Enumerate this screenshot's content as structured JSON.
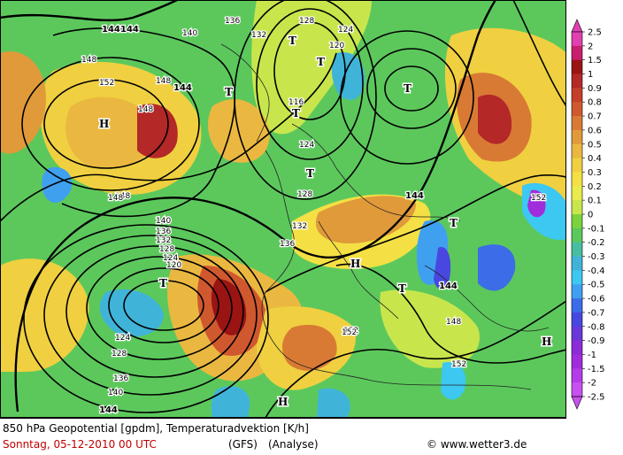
{
  "footer": {
    "line1": "850 hPa Geopotential [gpdm], Temperaturadvektion [K/h]",
    "line2": "Sonntag, 05-12-2010  00 UTC",
    "model": "(GFS)",
    "analysis": "(Analyse)",
    "credit": "www.wetter3.de"
  },
  "colorbar": {
    "ticks": [
      "2.5",
      "2",
      "1.5",
      "1",
      "0.9",
      "0.8",
      "0.7",
      "0.6",
      "0.5",
      "0.4",
      "0.3",
      "0.2",
      "0.1",
      "0",
      "-0.1",
      "-0.2",
      "-0.3",
      "-0.4",
      "-0.5",
      "-0.6",
      "-0.7",
      "-0.8",
      "-0.9",
      "-1",
      "-1.5",
      "-2",
      "-2.5"
    ],
    "colors": [
      "#e040b0",
      "#c81e6e",
      "#9a1414",
      "#b42828",
      "#c43e2a",
      "#d0582e",
      "#d87a34",
      "#e09a3a",
      "#eab840",
      "#f0d040",
      "#f4e044",
      "#e8ec4c",
      "#c8e64c",
      "#7cd23c",
      "#5cc85c",
      "#48bea0",
      "#40b4d8",
      "#3cc8f0",
      "#40a0f0",
      "#3c6ce8",
      "#4848e0",
      "#6838d8",
      "#8c2cd8",
      "#a02cdc",
      "#b43ce8",
      "#c850f0"
    ]
  },
  "map": {
    "pressure_centers": [
      {
        "label": "H"
      },
      {
        "label": "H"
      },
      {
        "label": "H"
      },
      {
        "label": "H"
      },
      {
        "label": "T"
      },
      {
        "label": "T"
      },
      {
        "label": "T"
      },
      {
        "label": "T"
      },
      {
        "label": "T"
      },
      {
        "label": "T"
      },
      {
        "label": "T"
      },
      {
        "label": "T"
      },
      {
        "label": "T"
      }
    ],
    "contour_labels": [
      "144",
      "144",
      "148",
      "152",
      "148",
      "144",
      "140",
      "136",
      "132",
      "128",
      "124",
      "120",
      "116",
      "124",
      "128",
      "132",
      "136",
      "140",
      "144",
      "148",
      "152",
      "148",
      "144",
      "152",
      "152",
      "148",
      "132",
      "136",
      "128",
      "124",
      "120",
      "136",
      "140",
      "144",
      "128",
      "124",
      "152",
      "148",
      "140"
    ]
  }
}
